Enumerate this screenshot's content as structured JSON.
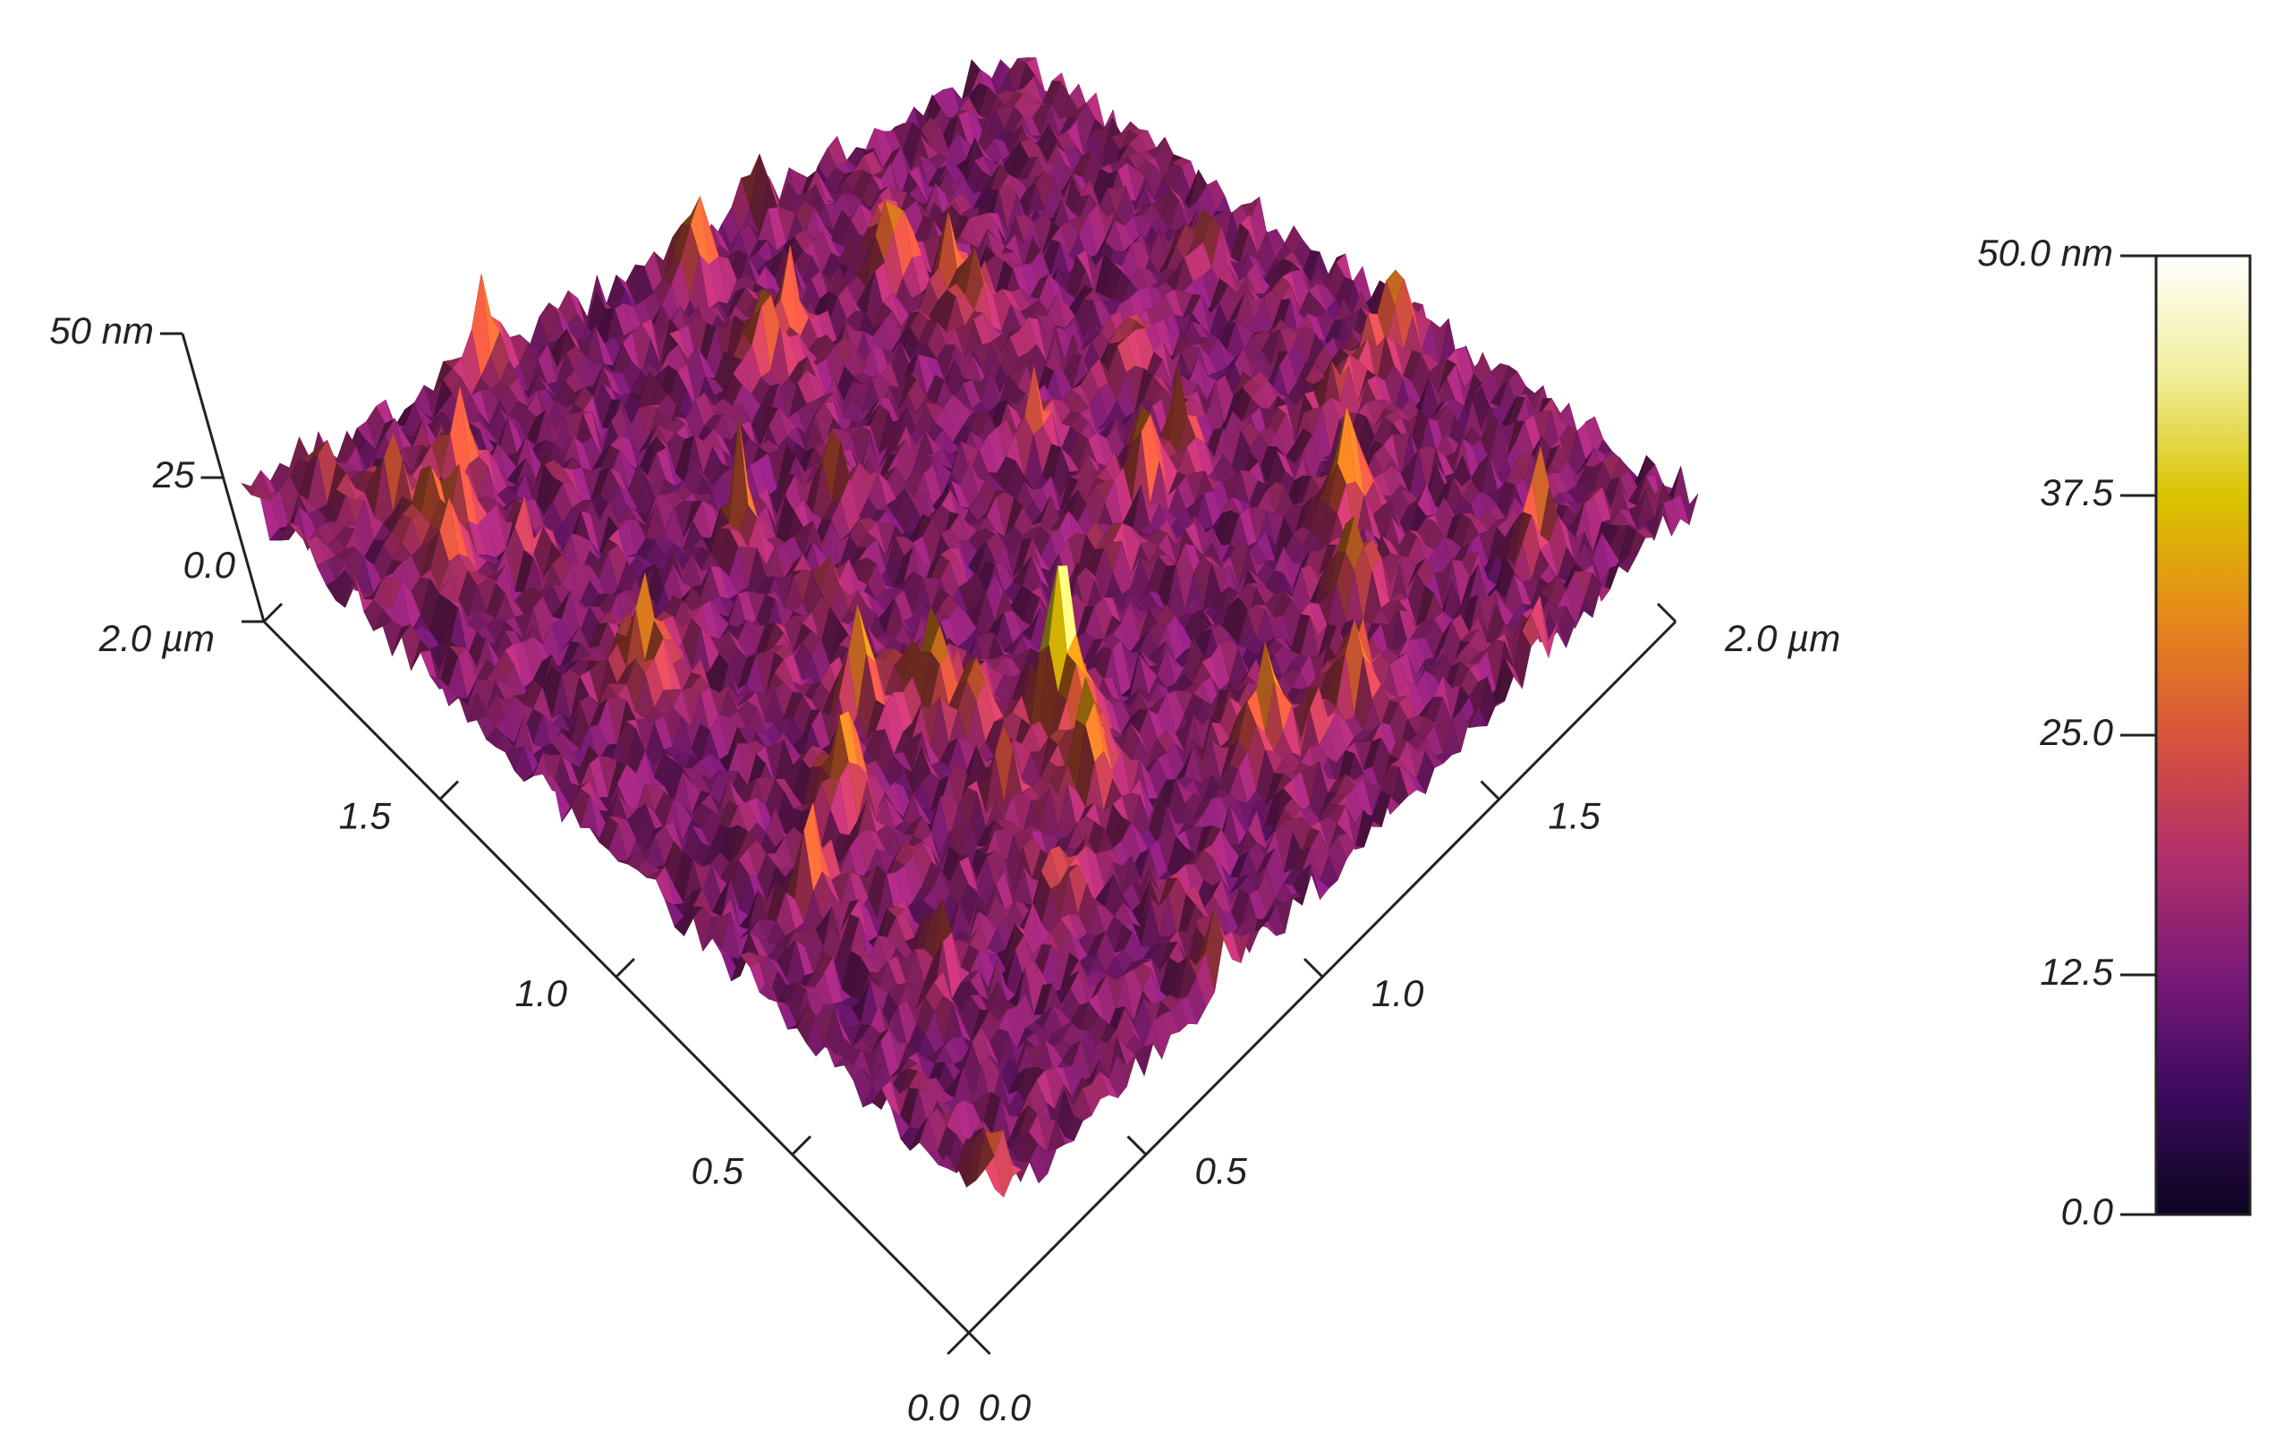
{
  "chart_data": {
    "type": "surface3d",
    "xlim": [
      0,
      2
    ],
    "xticks": [
      {
        "value": 0,
        "label": "0.0"
      },
      0.5,
      {
        "value": 1,
        "label": "1.0"
      },
      1.5,
      {
        "value": 2,
        "label": "2.0 µm"
      }
    ],
    "ylim": [
      0,
      2
    ],
    "yticks": [
      {
        "value": 0,
        "label": "0.0"
      },
      0.5,
      {
        "value": 1,
        "label": "1.0"
      },
      1.5,
      {
        "value": 2,
        "label": "2.0 µm"
      }
    ],
    "zlim": [
      0,
      50
    ],
    "zticks": [
      {
        "value": 0,
        "label": "0.0"
      },
      25,
      {
        "value": 50,
        "label": "50 nm"
      }
    ],
    "colormap": [
      "#0b0520",
      "#3c0a5e",
      "#7a1a78",
      "#b3306a",
      "#d9543a",
      "#e68a1a",
      "#d9c400",
      "#f0ee9a",
      "#ffffff"
    ],
    "colorbar": {
      "lim": [
        0,
        50
      ],
      "ticks": [
        {
          "value": 0,
          "label": "0.0"
        },
        12.5,
        {
          "value": 25,
          "label": "25.0"
        },
        37.5,
        {
          "value": 50,
          "label": "50.0 nm"
        }
      ]
    }
  }
}
